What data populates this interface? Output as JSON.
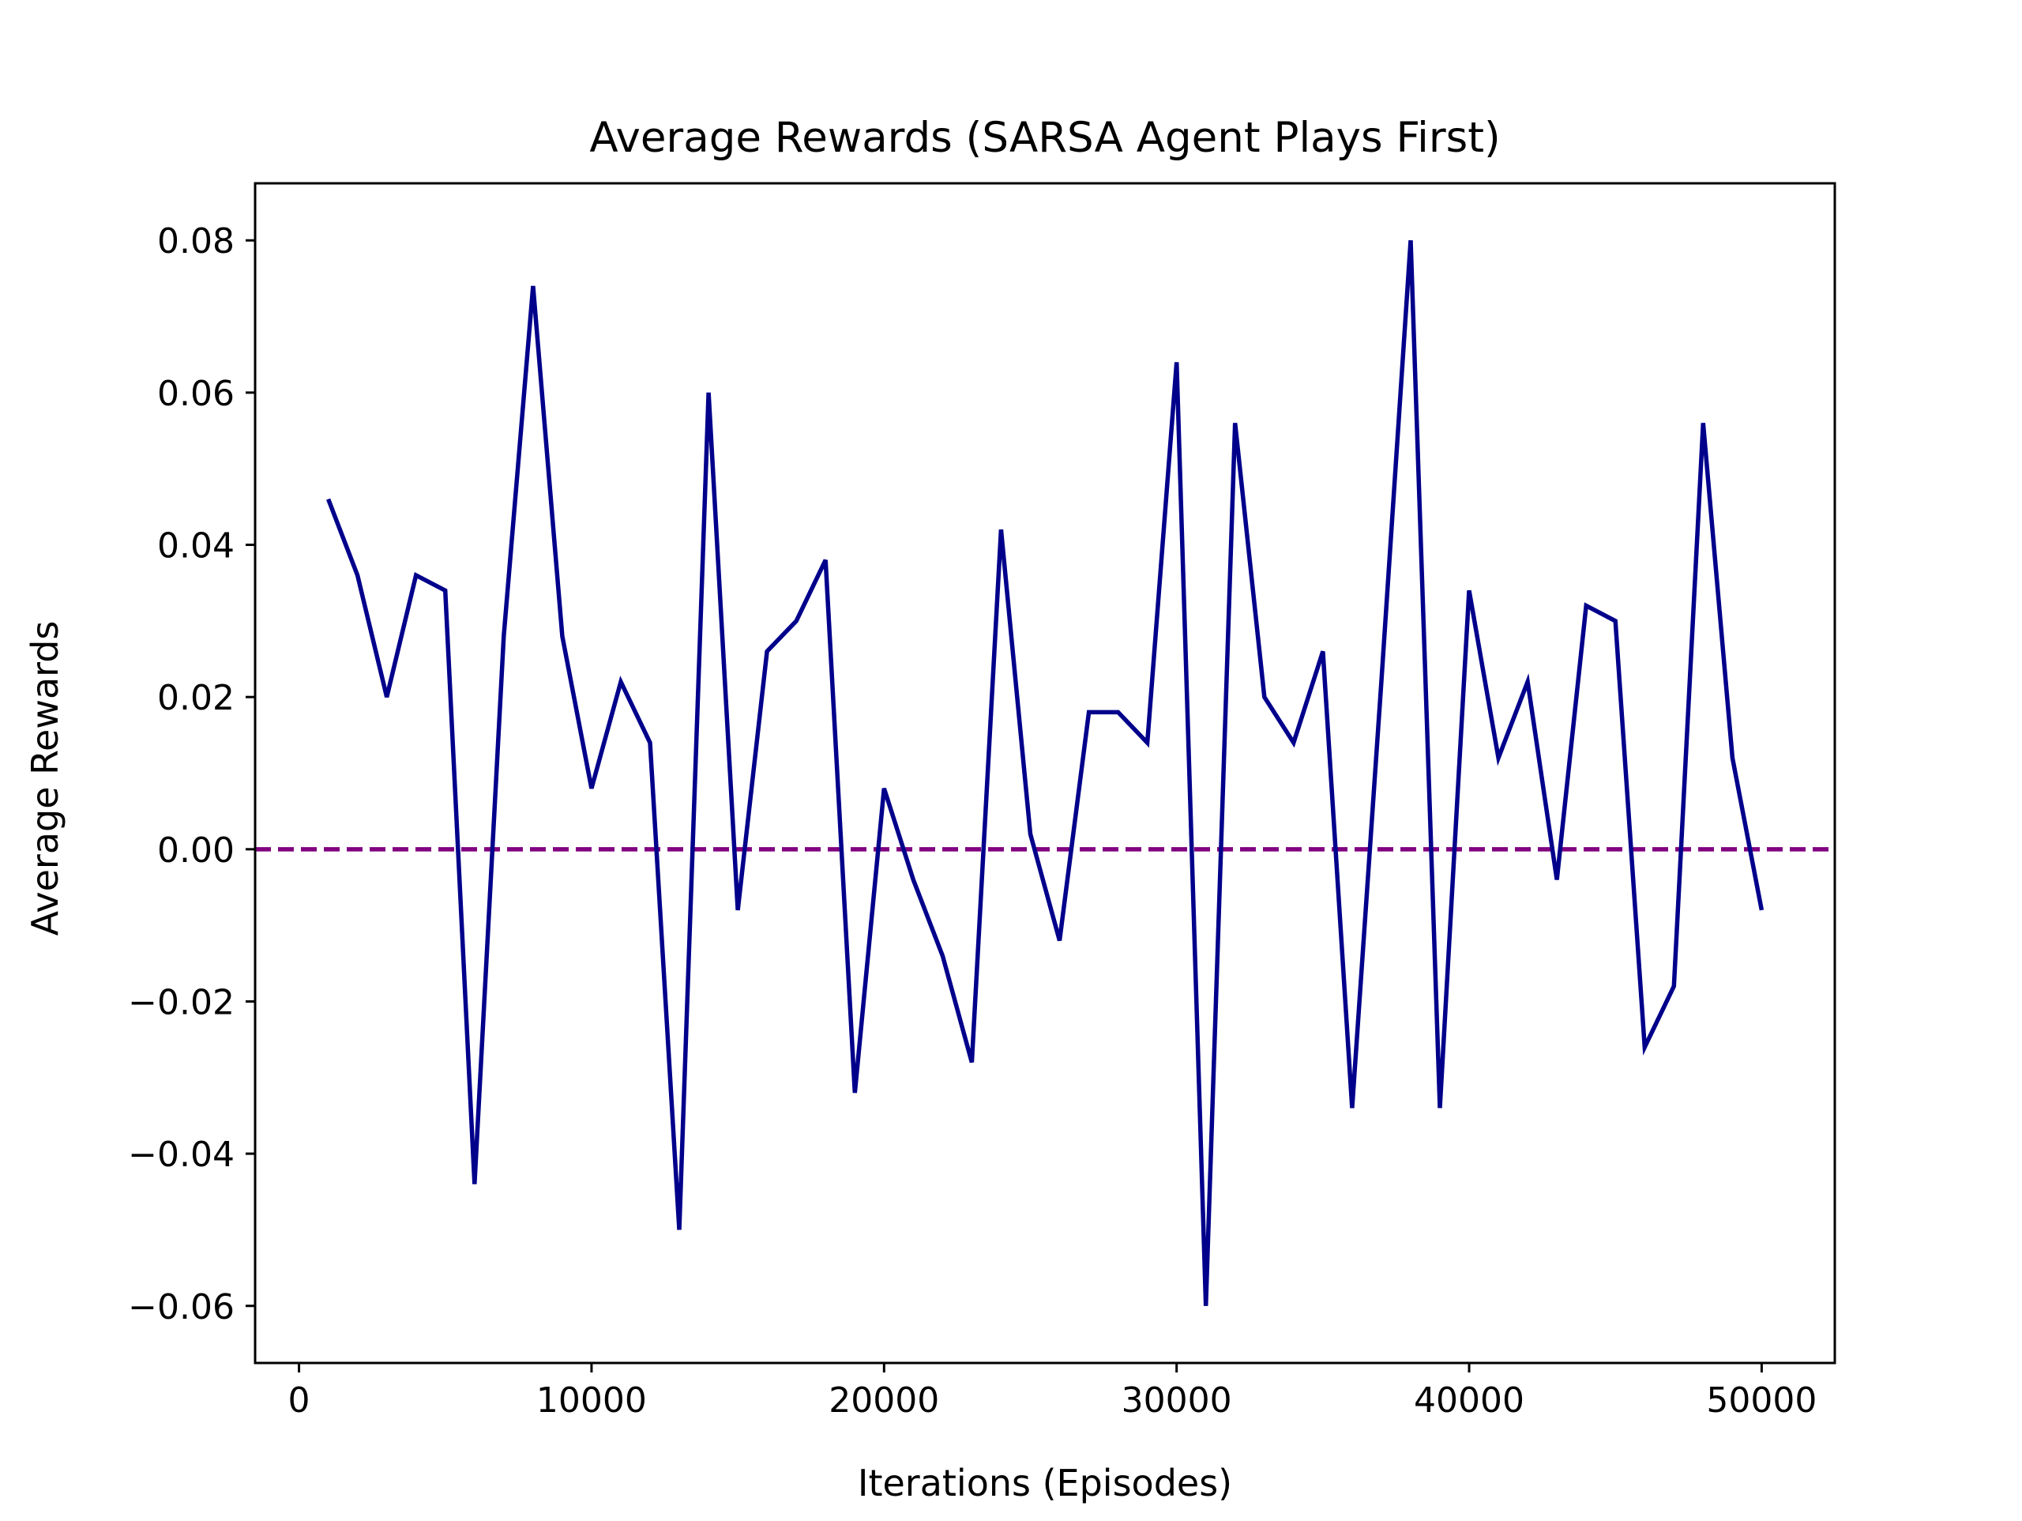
{
  "chart_data": {
    "type": "line",
    "title": "Average Rewards (SARSA Agent Plays First)",
    "xlabel": "Iterations (Episodes)",
    "ylabel": "Average Rewards",
    "xlim": [
      -1500,
      52500
    ],
    "ylim": [
      -0.0675,
      0.0875
    ],
    "xticks": [
      0,
      10000,
      20000,
      30000,
      40000,
      50000
    ],
    "xtick_labels": [
      "0",
      "10000",
      "20000",
      "30000",
      "40000",
      "50000"
    ],
    "yticks": [
      -0.06,
      -0.04,
      -0.02,
      0.0,
      0.02,
      0.04,
      0.06,
      0.08
    ],
    "ytick_labels": [
      "−0.06",
      "−0.04",
      "−0.02",
      "0.00",
      "0.02",
      "0.04",
      "0.06",
      "0.08"
    ],
    "grid": false,
    "series": [
      {
        "color": "#00008b",
        "x": [
          1000,
          2000,
          3000,
          4000,
          5000,
          6000,
          7000,
          8000,
          9000,
          10000,
          11000,
          12000,
          13000,
          14000,
          15000,
          16000,
          17000,
          18000,
          19000,
          20000,
          21000,
          22000,
          23000,
          24000,
          25000,
          26000,
          27000,
          28000,
          29000,
          30000,
          31000,
          32000,
          33000,
          34000,
          35000,
          36000,
          37000,
          38000,
          39000,
          40000,
          41000,
          42000,
          43000,
          44000,
          45000,
          46000,
          47000,
          48000,
          49000,
          50000
        ],
        "y": [
          0.046,
          0.036,
          0.02,
          0.036,
          0.034,
          -0.044,
          0.028,
          0.074,
          0.028,
          0.008,
          0.022,
          0.014,
          -0.05,
          0.06,
          -0.008,
          0.026,
          0.03,
          0.038,
          -0.032,
          0.008,
          -0.004,
          -0.014,
          -0.028,
          0.042,
          0.002,
          -0.012,
          0.018,
          0.018,
          0.014,
          0.064,
          -0.06,
          0.056,
          0.02,
          0.014,
          0.026,
          -0.034,
          0.022,
          0.08,
          -0.034,
          0.034,
          0.012,
          0.022,
          -0.004,
          0.032,
          0.03,
          -0.026,
          -0.018,
          0.056,
          0.012,
          -0.008
        ]
      }
    ],
    "reference_line": {
      "y": 0.0,
      "color": "#800080",
      "style": "dashed"
    }
  }
}
